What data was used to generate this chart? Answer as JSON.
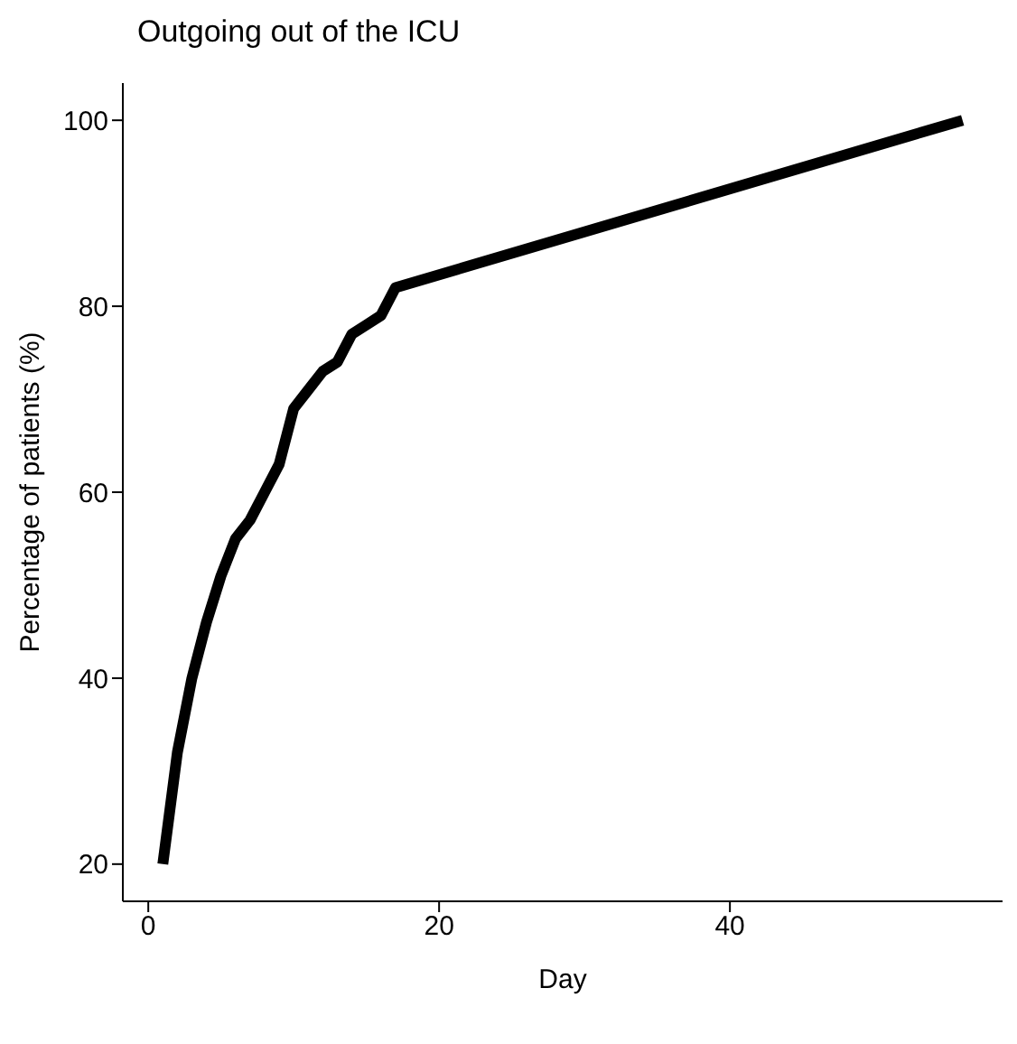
{
  "chart_data": {
    "type": "line",
    "title": "Outgoing out of the ICU",
    "xlabel": "Day",
    "ylabel": "Percentage of patients (%)",
    "x": [
      1,
      2,
      3,
      4,
      5,
      6,
      7,
      8,
      9,
      10,
      11,
      12,
      13,
      14,
      15,
      16,
      17,
      56
    ],
    "series": [
      {
        "color": "#000000",
        "values": [
          20,
          32,
          40,
          46,
          51,
          55,
          57,
          60,
          63,
          69,
          71,
          73,
          74,
          77,
          78,
          79,
          82,
          100
        ]
      }
    ],
    "xlim": [
      -1.75,
      58.75
    ],
    "xticks": [
      0,
      20,
      40
    ],
    "ylim": [
      16,
      104
    ],
    "yticks": [
      20,
      40,
      60,
      80,
      100
    ],
    "grid": false,
    "legend": false,
    "marker": "none",
    "line_style": "solid"
  }
}
